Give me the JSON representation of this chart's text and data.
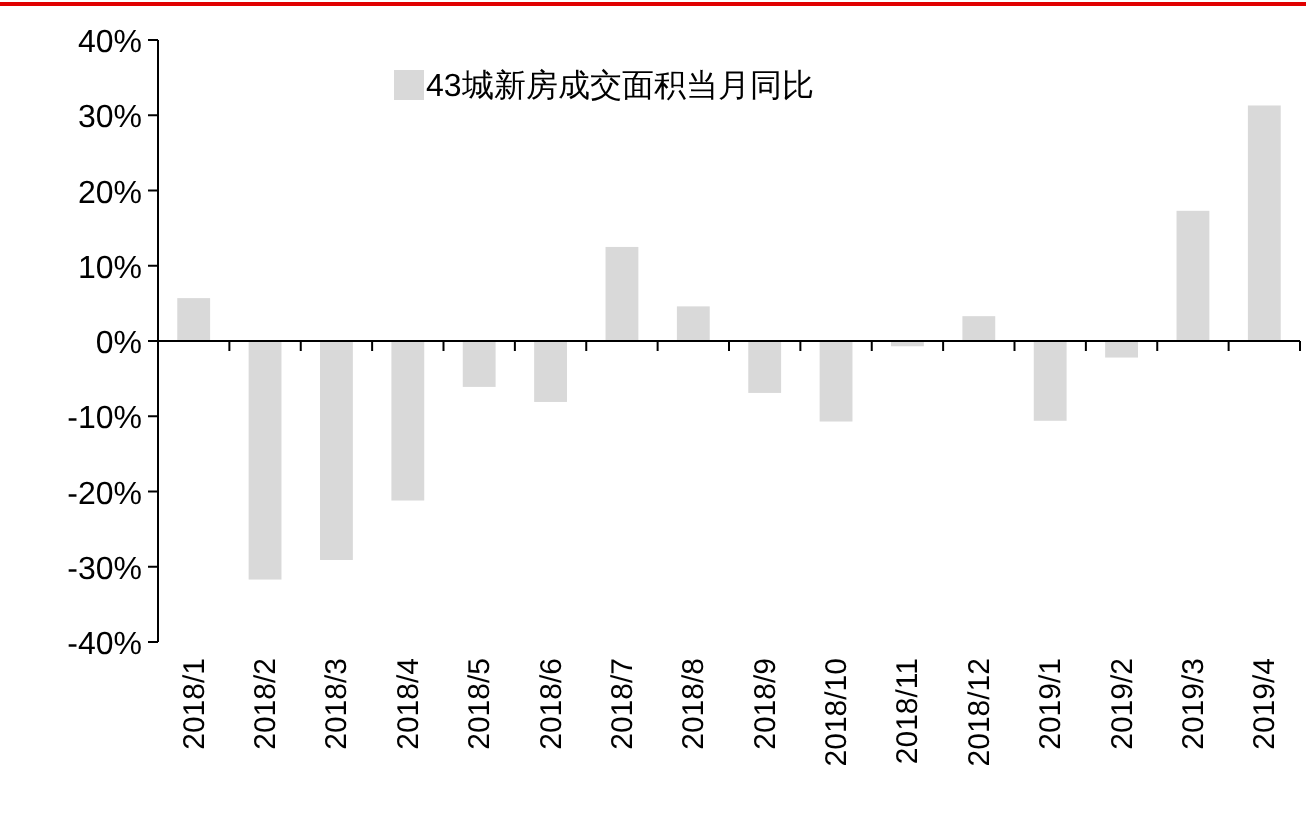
{
  "chart_data": {
    "type": "bar",
    "categories": [
      "2018/1",
      "2018/2",
      "2018/3",
      "2018/4",
      "2018/5",
      "2018/6",
      "2018/7",
      "2018/8",
      "2018/9",
      "2018/10",
      "2018/11",
      "2018/12",
      "2019/1",
      "2019/2",
      "2019/3",
      "2019/4"
    ],
    "series": [
      {
        "name": "43城新房成交面积当月同比",
        "color": "#d9d9d9",
        "values": [
          5.7,
          -31.7,
          -29.1,
          -21.2,
          -6.1,
          -8.1,
          12.5,
          4.6,
          -6.9,
          -10.7,
          -0.7,
          3.3,
          -10.6,
          -2.2,
          17.3,
          31.3
        ]
      }
    ],
    "ylim": [
      -40,
      40
    ],
    "yticks": [
      {
        "value": -40,
        "label": "-40%"
      },
      {
        "value": -30,
        "label": "-30%"
      },
      {
        "value": -20,
        "label": "-20%"
      },
      {
        "value": -10,
        "label": "-10%"
      },
      {
        "value": 0,
        "label": "0%"
      },
      {
        "value": 10,
        "label": "10%"
      },
      {
        "value": 20,
        "label": "20%"
      },
      {
        "value": 30,
        "label": "30%"
      },
      {
        "value": 40,
        "label": "40%"
      }
    ],
    "legend": "top"
  }
}
